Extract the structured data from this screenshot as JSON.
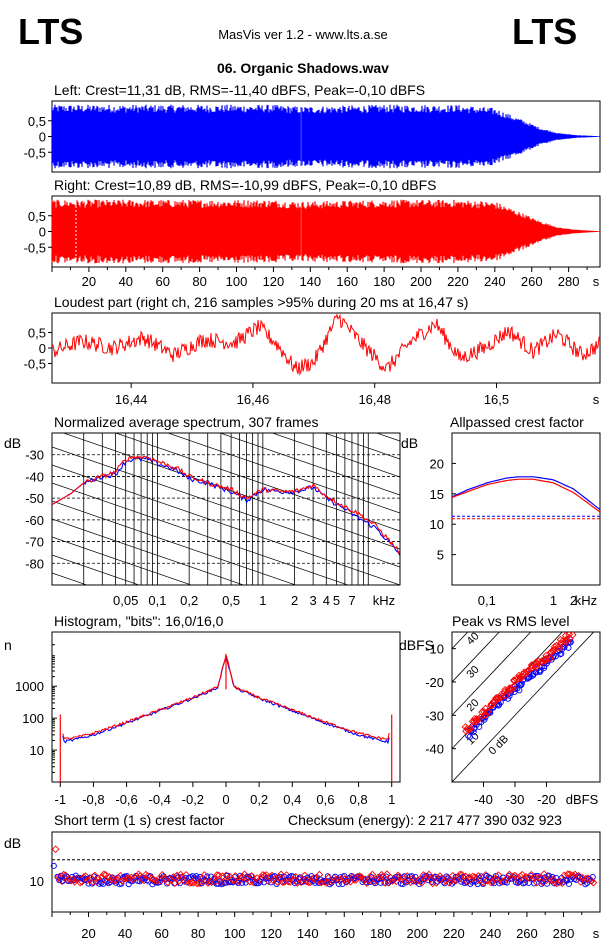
{
  "header": {
    "logo_left": "LTS",
    "logo_right": "LTS",
    "app_title": "MasVis ver 1.2 - www.lts.a.se",
    "file_name": "06. Organic Shadows.wav"
  },
  "chart_data": [
    {
      "id": "left",
      "type": "area",
      "title": "Left: Crest=11,31 dB, RMS=-11,40 dBFS, Peak=-0,10 dBFS",
      "color": "#0000ff",
      "ylim": [
        -1,
        1
      ],
      "y_ticks": [
        "0,5",
        "0",
        "-0,5"
      ],
      "envelope_time_s": [
        0,
        10,
        40,
        80,
        120,
        135,
        180,
        220,
        240,
        255,
        265,
        275,
        285,
        297
      ],
      "envelope_amplitude": [
        0.95,
        0.95,
        0.95,
        0.95,
        0.95,
        0.9,
        0.95,
        0.95,
        0.85,
        0.5,
        0.25,
        0.1,
        0.04,
        0.01
      ]
    },
    {
      "id": "right",
      "type": "area",
      "title": "Right: Crest=10,89 dB, RMS=-10,99 dBFS, Peak=-0,10 dBFS",
      "color": "#ff0000",
      "ylim": [
        -1,
        1
      ],
      "y_ticks": [
        "0,5",
        "0",
        "-0,5"
      ],
      "x_ticks": [
        "20",
        "40",
        "60",
        "80",
        "100",
        "120",
        "140",
        "160",
        "180",
        "200",
        "220",
        "240",
        "260",
        "280",
        "s"
      ],
      "envelope_time_s": [
        0,
        10,
        40,
        80,
        120,
        135,
        180,
        220,
        240,
        255,
        265,
        275,
        285,
        297
      ],
      "envelope_amplitude": [
        0.95,
        0.95,
        0.95,
        0.95,
        0.95,
        0.9,
        0.95,
        0.95,
        0.9,
        0.55,
        0.3,
        0.12,
        0.05,
        0.01
      ]
    },
    {
      "id": "loudest",
      "type": "line",
      "title": "Loudest part (right ch, 216 samples >95% during 20 ms at 16,47 s)",
      "color": "#ff0000",
      "ylim": [
        -1,
        1
      ],
      "xlim": [
        16.427,
        16.517
      ],
      "y_ticks": [
        "0,5",
        "0",
        "-0,5"
      ],
      "x_ticks": [
        "16,44",
        "16,46",
        "16,48",
        "16,5",
        "s"
      ],
      "x": [
        16.427,
        16.432,
        16.437,
        16.442,
        16.447,
        16.452,
        16.457,
        16.461,
        16.464,
        16.467,
        16.47,
        16.474,
        16.478,
        16.482,
        16.486,
        16.49,
        16.494,
        16.498,
        16.502,
        16.506,
        16.51,
        16.514,
        16.517
      ],
      "y": [
        -0.1,
        0.2,
        0.0,
        0.3,
        -0.2,
        0.25,
        0.15,
        0.6,
        0.1,
        -0.6,
        -0.4,
        0.9,
        0.1,
        -0.6,
        0.2,
        0.7,
        -0.3,
        0.0,
        0.5,
        -0.1,
        0.4,
        -0.2,
        0.1
      ]
    },
    {
      "id": "spectrum",
      "type": "line",
      "title": "Normalized average spectrum, 307 frames",
      "ylabel": "dB",
      "xlabel": "kHz",
      "x_scale": "log",
      "xlim": [
        0.01,
        20
      ],
      "ylim": [
        -90,
        -20
      ],
      "y_ticks": [
        "-30",
        "-40",
        "-50",
        "-60",
        "-70",
        "-80"
      ],
      "x_ticks": [
        "0,05",
        "0,1",
        "0,2",
        "0,5",
        "1",
        "2",
        "3",
        "4",
        "5",
        "7",
        "kHz"
      ],
      "series": [
        {
          "color": "#0000ff",
          "x": [
            0.01,
            0.015,
            0.02,
            0.03,
            0.04,
            0.05,
            0.06,
            0.08,
            0.1,
            0.15,
            0.2,
            0.3,
            0.5,
            0.7,
            1,
            1.5,
            2,
            3,
            4,
            6,
            8,
            12,
            20
          ],
          "y": [
            -53,
            -48,
            -43,
            -40,
            -39,
            -33,
            -32,
            -32,
            -34,
            -37,
            -41,
            -43,
            -47,
            -51,
            -46,
            -47,
            -47,
            -45,
            -50,
            -55,
            -59,
            -64,
            -76
          ]
        },
        {
          "color": "#ff0000",
          "x": [
            0.01,
            0.015,
            0.02,
            0.03,
            0.04,
            0.05,
            0.06,
            0.08,
            0.1,
            0.15,
            0.2,
            0.3,
            0.5,
            0.7,
            1,
            1.5,
            2,
            3,
            4,
            6,
            8,
            12,
            20
          ],
          "y": [
            -53,
            -48,
            -43,
            -40,
            -38,
            -32,
            -31,
            -31,
            -33,
            -36,
            -40,
            -43,
            -46,
            -50,
            -46,
            -47,
            -47,
            -44,
            -49,
            -54,
            -57,
            -63,
            -75
          ]
        }
      ]
    },
    {
      "id": "crest",
      "type": "line",
      "title": "Allpassed crest factor",
      "ylabel": "dB",
      "xlabel": "kHz",
      "x_scale": "log",
      "xlim": [
        0.03,
        5
      ],
      "ylim": [
        0,
        25
      ],
      "y_ticks": [
        "20",
        "15",
        "10",
        "5"
      ],
      "x_ticks": [
        "0,1",
        "1",
        "2",
        "kHz"
      ],
      "reference_lines": [
        {
          "y": 11.3,
          "color": "#0000ff"
        },
        {
          "y": 10.9,
          "color": "#ff0000"
        }
      ],
      "series": [
        {
          "color": "#0000ff",
          "x": [
            0.03,
            0.05,
            0.1,
            0.2,
            0.3,
            0.5,
            1,
            2,
            3,
            5
          ],
          "y": [
            14.5,
            15.6,
            16.8,
            17.6,
            17.8,
            17.8,
            17.3,
            15.8,
            14.3,
            12.4
          ]
        },
        {
          "color": "#ff0000",
          "x": [
            0.03,
            0.05,
            0.1,
            0.2,
            0.3,
            0.5,
            1,
            2,
            3,
            5
          ],
          "y": [
            14.4,
            15.3,
            16.5,
            17.2,
            17.4,
            17.4,
            16.8,
            15.2,
            13.8,
            12.0
          ]
        }
      ]
    },
    {
      "id": "histogram",
      "type": "line",
      "title": "Histogram, \"bits\": 16,0/16,0",
      "ylabel": "n",
      "y_scale": "log",
      "xlim": [
        -1.05,
        1.05
      ],
      "ylim": [
        1,
        50000
      ],
      "y_ticks": [
        "1000",
        "100",
        "10"
      ],
      "x_ticks": [
        "-1",
        "-0,8",
        "-0,6",
        "-0,4",
        "-0,2",
        "0",
        "0,2",
        "0,4",
        "0,6",
        "0,8",
        "1"
      ],
      "series": [
        {
          "color": "#0000ff",
          "x": [
            -1,
            -0.98,
            -0.9,
            -0.8,
            -0.6,
            -0.4,
            -0.2,
            -0.05,
            0,
            0.05,
            0.2,
            0.4,
            0.6,
            0.8,
            0.9,
            0.98,
            1
          ],
          "y": [
            90,
            18,
            22,
            30,
            70,
            170,
            420,
            900,
            9000,
            900,
            420,
            170,
            70,
            30,
            22,
            18,
            90
          ]
        },
        {
          "color": "#ff0000",
          "x": [
            -1,
            -0.98,
            -0.9,
            -0.8,
            -0.6,
            -0.4,
            -0.2,
            -0.05,
            0,
            0.05,
            0.2,
            0.4,
            0.6,
            0.8,
            0.9,
            0.98,
            1
          ],
          "y": [
            100,
            22,
            25,
            34,
            75,
            180,
            440,
            950,
            9500,
            950,
            440,
            180,
            75,
            34,
            25,
            22,
            100
          ]
        }
      ]
    },
    {
      "id": "peak_vs_rms",
      "type": "scatter",
      "title": "Peak vs RMS level",
      "ylabel": "dBFS",
      "xlabel": "dBFS",
      "xlim": [
        -50,
        -3
      ],
      "ylim": [
        -50,
        -5
      ],
      "y_ticks": [
        "-10",
        "-20",
        "-30",
        "-40"
      ],
      "x_ticks": [
        "-40",
        "-30",
        "-20",
        "dBFS"
      ],
      "diagonal_labels": [
        "40",
        "30",
        "20",
        "10",
        "0 dB"
      ],
      "series": [
        {
          "color": "#0000ff",
          "x": [
            -45,
            -43,
            -40,
            -38,
            -35,
            -32,
            -30,
            -28,
            -26,
            -24,
            -22,
            -20,
            -19,
            -18,
            -17,
            -16,
            -15,
            -14,
            -13,
            -12
          ],
          "y": [
            -36,
            -34,
            -31,
            -29,
            -26,
            -24,
            -22,
            -21,
            -19,
            -17,
            -16,
            -14,
            -13,
            -13,
            -12,
            -11,
            -10,
            -9,
            -9,
            -8
          ]
        },
        {
          "color": "#ff0000",
          "x": [
            -46,
            -44,
            -41,
            -38,
            -35,
            -33,
            -31,
            -29,
            -27,
            -25,
            -23,
            -21,
            -19,
            -18,
            -17,
            -16,
            -15,
            -14,
            -13,
            -12
          ],
          "y": [
            -35,
            -33,
            -30,
            -28,
            -25,
            -23,
            -21,
            -19,
            -18,
            -16,
            -14,
            -13,
            -12,
            -11,
            -10,
            -9,
            -8,
            -7,
            -7,
            -6
          ]
        }
      ]
    },
    {
      "id": "short_term_crest",
      "type": "scatter",
      "title": "Short term (1 s) crest factor",
      "checksum": "Checksum (energy):  2 217 477 390 032 923",
      "ylabel": "dB",
      "xlim": [
        0,
        300
      ],
      "ylim": [
        5,
        18
      ],
      "y_ticks": [
        "10"
      ],
      "x_ticks": [
        "20",
        "40",
        "60",
        "80",
        "100",
        "120",
        "140",
        "160",
        "180",
        "200",
        "220",
        "240",
        "260",
        "280",
        "s"
      ],
      "reference_value": 13.5,
      "series_base": {
        "blue": 10.2,
        "red": 10.4
      },
      "outliers": [
        {
          "x": 2,
          "y": 15.2,
          "color": "#ff0000"
        },
        {
          "x": 1,
          "y": 12.5,
          "color": "#0000ff"
        }
      ]
    }
  ]
}
